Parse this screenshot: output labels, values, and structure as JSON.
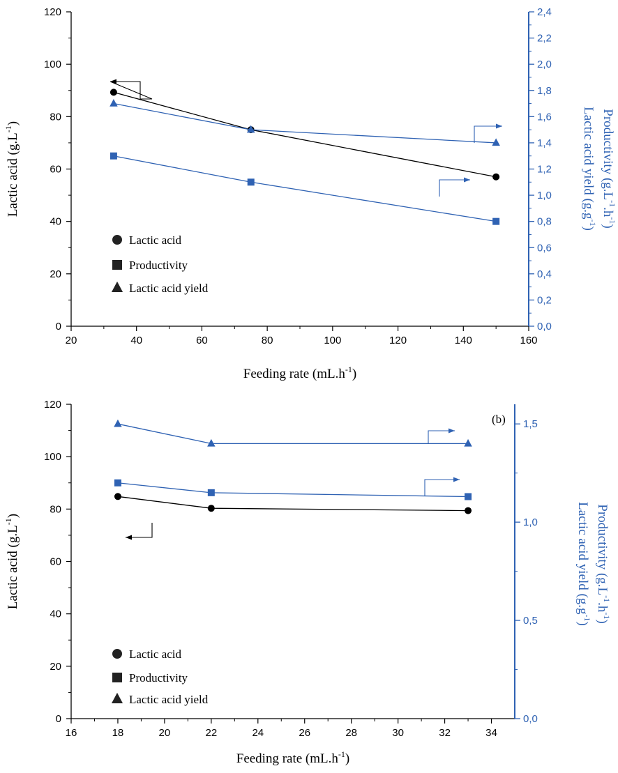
{
  "colors": {
    "black": "#000000",
    "blue": "#2f62b3",
    "blue_axis": "#2f62b3"
  },
  "chart_data": [
    {
      "type": "line",
      "panel_label": "",
      "x": [
        33,
        75,
        150
      ],
      "xlim": [
        20,
        160
      ],
      "xticks": [
        20,
        40,
        60,
        80,
        100,
        120,
        140,
        160
      ],
      "xticklabels": [
        "20",
        "40",
        "60",
        "80",
        "100",
        "120",
        "140",
        "160"
      ],
      "xlabel": "Feeding rate (mL.h",
      "xlabel_sup": "-1",
      "xlabel_tail": ")",
      "ylim": [
        0,
        120
      ],
      "yticks": [
        0,
        20,
        40,
        60,
        80,
        100,
        120
      ],
      "yticklabels": [
        "0",
        "20",
        "40",
        "60",
        "80",
        "100",
        "120"
      ],
      "ylabel": "Lactic acid (g.L",
      "ylabel_sup": "-1",
      "ylabel_tail": ")",
      "y2lim": [
        0,
        2.4
      ],
      "y2ticks": [
        0,
        0.2,
        0.4,
        0.6,
        0.8,
        1.0,
        1.2,
        1.4,
        1.6,
        1.8,
        2.0,
        2.2,
        2.4
      ],
      "y2ticklabels": [
        "0,0",
        "0,2",
        "0,4",
        "0,6",
        "0,8",
        "1,0",
        "1,2",
        "1,4",
        "1,6",
        "1,8",
        "2,0",
        "2,2",
        "2,4"
      ],
      "y2label_1": "Productivity (g.L",
      "y2label_1_sup1": "-1",
      "y2label_1_mid": ".h",
      "y2label_1_sup2": "-1",
      "y2label_1_tail": ")",
      "y2label_2": "Lactic acid yield (g.g",
      "y2label_2_sup": "-1",
      "y2label_2_tail": ")",
      "series": [
        {
          "name": "Lactic acid",
          "axis": "left",
          "marker": "circle",
          "color": "#000000",
          "values": [
            89.3,
            75.0,
            57.0
          ]
        },
        {
          "name": "Productivity",
          "axis": "right",
          "marker": "square",
          "color": "#2f62b3",
          "values": [
            1.3,
            1.1,
            0.8
          ]
        },
        {
          "name": "Lactic acid yield",
          "axis": "right",
          "marker": "triangle",
          "color": "#2f62b3",
          "values": [
            1.7,
            1.5,
            1.4
          ]
        }
      ],
      "legend": [
        {
          "label": "Lactic acid",
          "marker": "circle"
        },
        {
          "label": "Productivity",
          "marker": "square"
        },
        {
          "label": "Lactic acid yield",
          "marker": "triangle"
        }
      ],
      "legend_position": "bottom-left"
    },
    {
      "type": "line",
      "panel_label": "(b)",
      "x": [
        18,
        22,
        33
      ],
      "xlim": [
        16,
        35
      ],
      "xticks": [
        16,
        18,
        20,
        22,
        24,
        26,
        28,
        30,
        32,
        34
      ],
      "xticklabels": [
        "16",
        "18",
        "20",
        "22",
        "24",
        "26",
        "28",
        "30",
        "32",
        "34"
      ],
      "xlabel": "Feeding rate (mL.h",
      "xlabel_sup": "-1",
      "xlabel_tail": ")",
      "ylim": [
        0,
        120
      ],
      "yticks": [
        0,
        20,
        40,
        60,
        80,
        100,
        120
      ],
      "yticklabels": [
        "0",
        "20",
        "40",
        "60",
        "80",
        "100",
        "120"
      ],
      "ylabel": "Lactic acid (g.L",
      "ylabel_sup": "-1",
      "ylabel_tail": ")",
      "y2lim": [
        0,
        1.6
      ],
      "y2ticks": [
        0,
        0.5,
        1.0,
        1.5
      ],
      "y2ticklabels": [
        "0,0",
        "0,5",
        "1,0",
        "1,5"
      ],
      "y2label_1": "Productivity (g.L",
      "y2label_1_sup1": "-1",
      "y2label_1_mid": ".h",
      "y2label_1_sup2": "-1",
      "y2label_1_tail": ")",
      "y2label_2": "Lactic acid yield (g.g",
      "y2label_2_sup": "-1",
      "y2label_2_tail": ")",
      "series": [
        {
          "name": "Lactic acid",
          "axis": "left",
          "marker": "circle",
          "color": "#000000",
          "values": [
            84.8,
            80.3,
            79.4
          ]
        },
        {
          "name": "Productivity",
          "axis": "right",
          "marker": "square",
          "color": "#2f62b3",
          "values": [
            1.2,
            1.15,
            1.13
          ]
        },
        {
          "name": "Lactic acid yield",
          "axis": "right",
          "marker": "triangle",
          "color": "#2f62b3",
          "values": [
            1.5,
            1.4,
            1.4
          ]
        }
      ],
      "legend": [
        {
          "label": "Lactic acid",
          "marker": "circle"
        },
        {
          "label": "Productivity",
          "marker": "square"
        },
        {
          "label": "Lactic acid yield",
          "marker": "triangle"
        }
      ],
      "legend_position": "bottom-left"
    }
  ]
}
